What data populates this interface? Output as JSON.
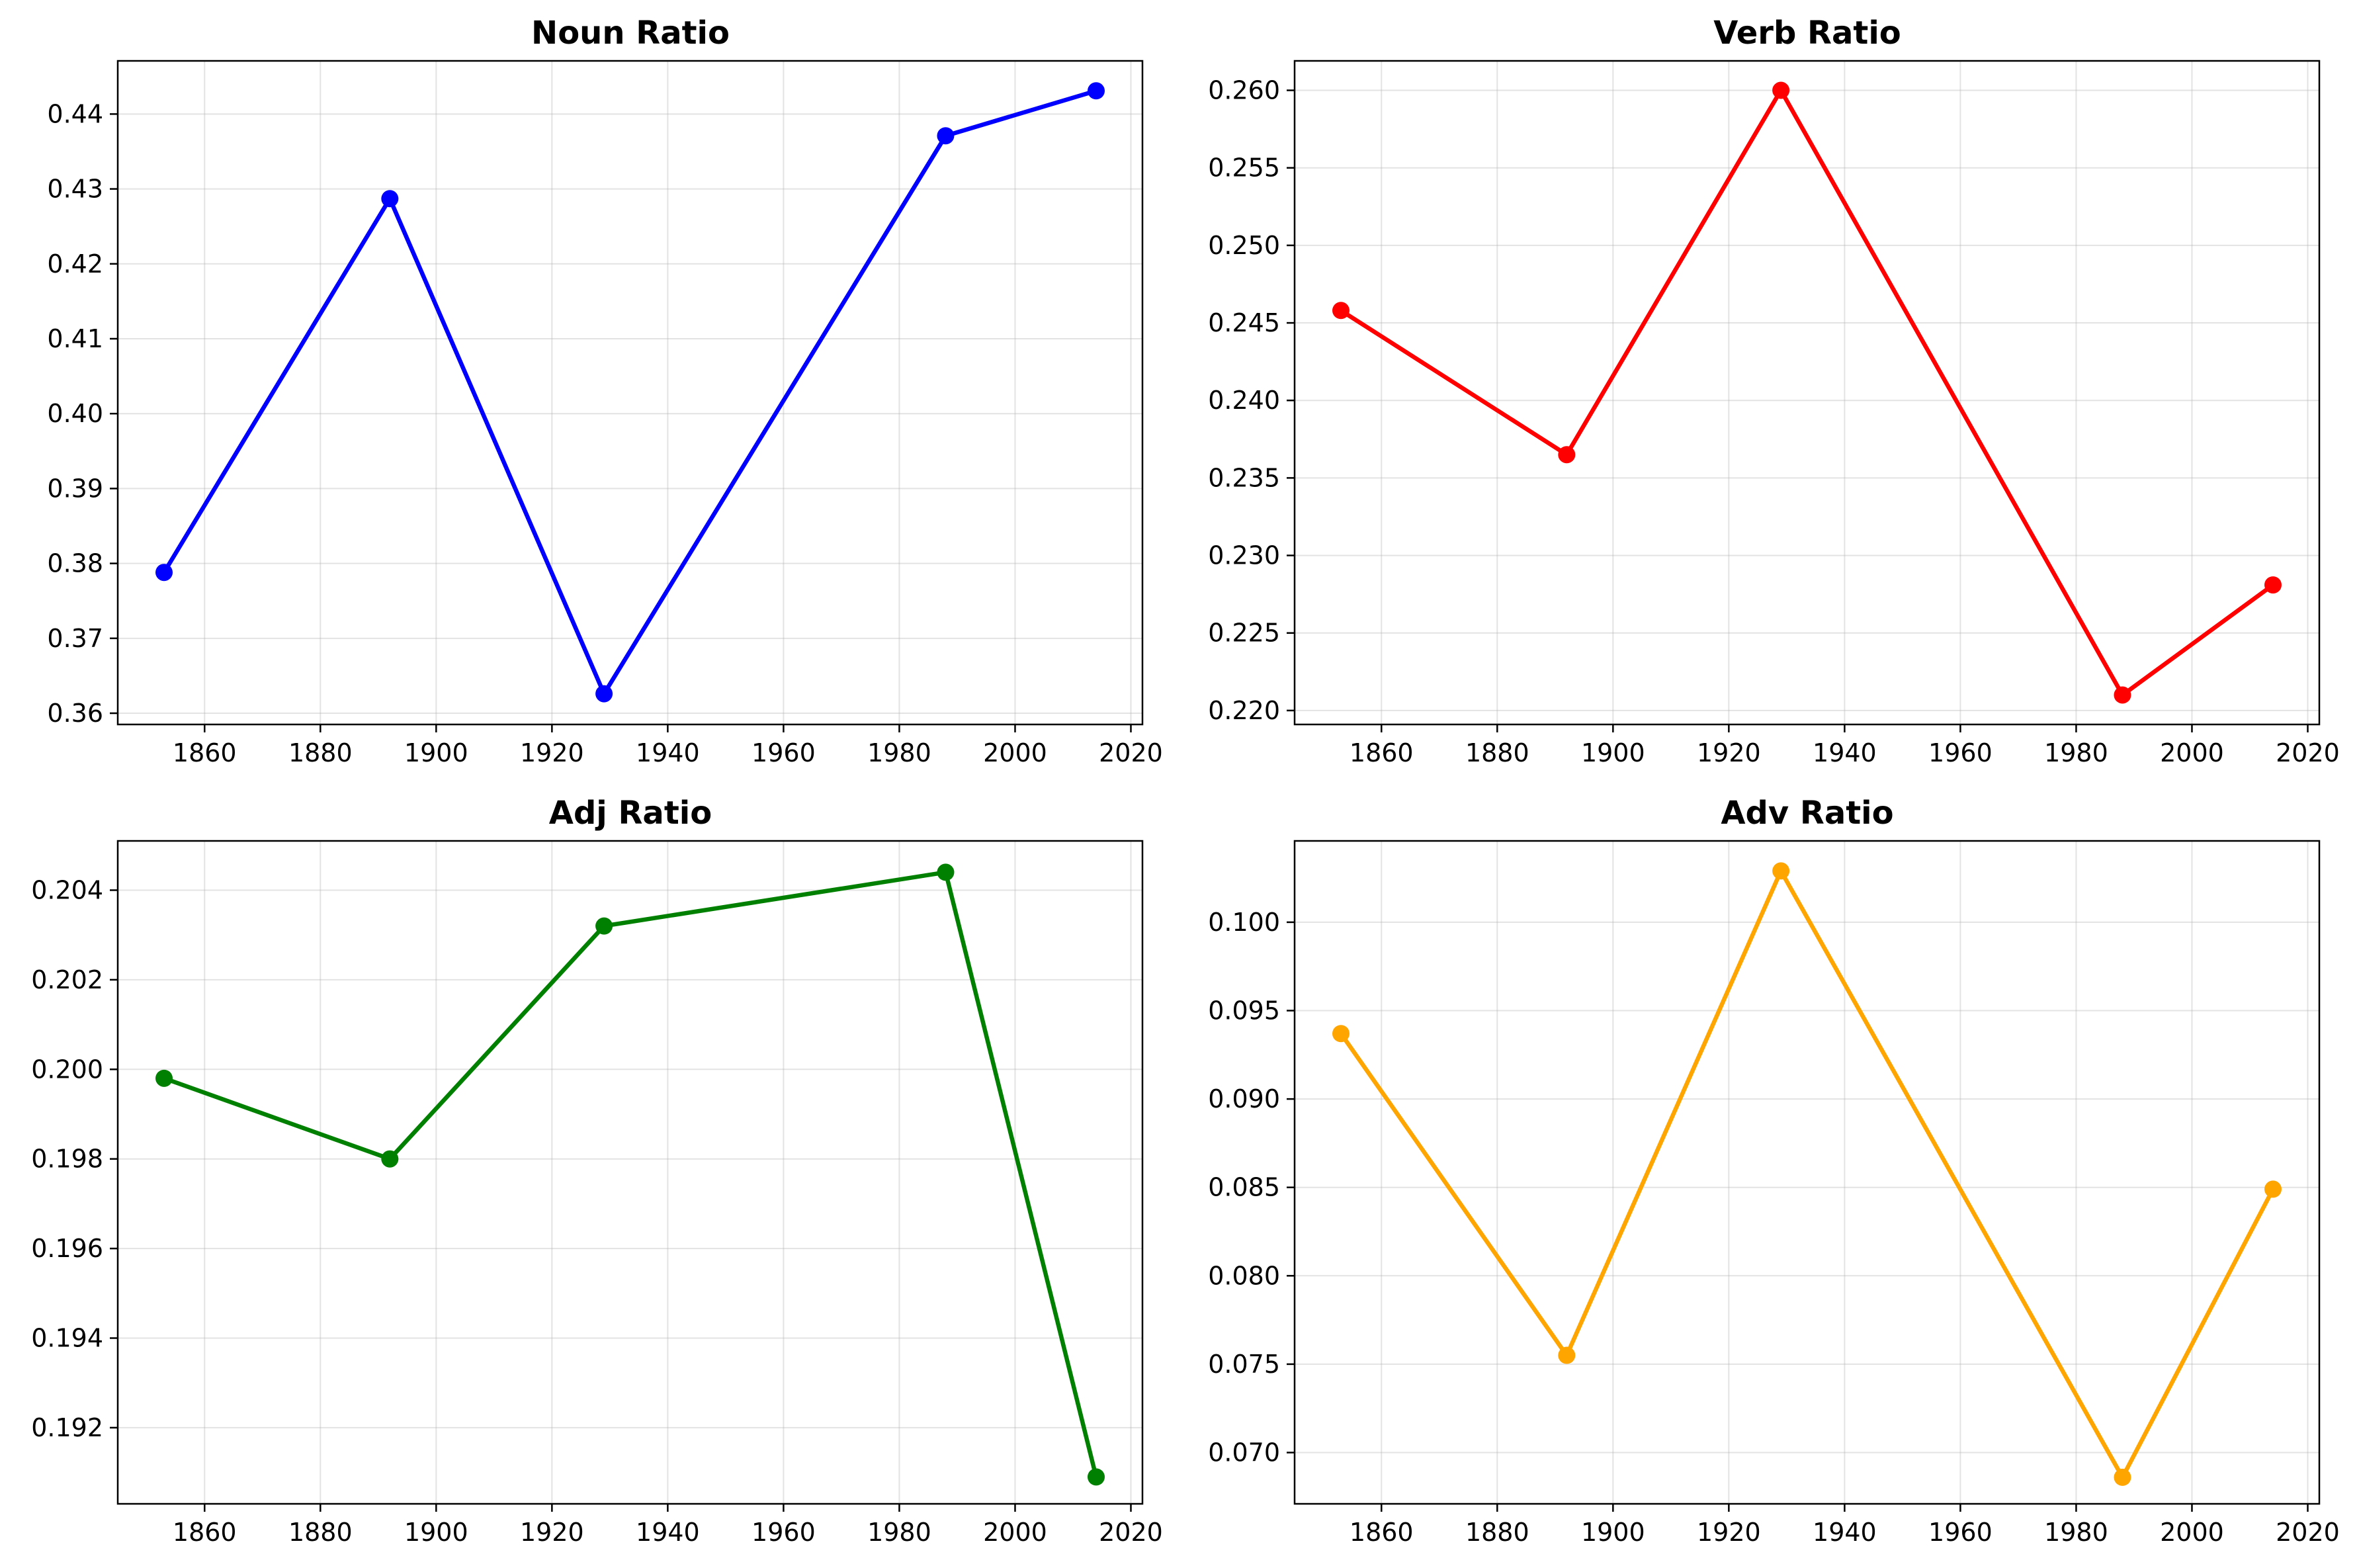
{
  "chart_data": [
    {
      "type": "line",
      "title": "Noun Ratio",
      "xlabel": "",
      "ylabel": "",
      "color": "#0000ff",
      "x": [
        1853,
        1892,
        1929,
        1988,
        2014
      ],
      "values": [
        0.3788,
        0.4287,
        0.3626,
        0.4371,
        0.4431
      ],
      "xlim": [
        1845,
        2022
      ],
      "ylim": [
        0.3585,
        0.4471
      ],
      "xticks": [
        1860,
        1880,
        1900,
        1920,
        1940,
        1960,
        1980,
        2000,
        2020
      ],
      "xtick_labels": [
        "1860",
        "1880",
        "1900",
        "1920",
        "1940",
        "1960",
        "1980",
        "2000",
        "2020"
      ],
      "yticks": [
        0.36,
        0.37,
        0.38,
        0.39,
        0.4,
        0.41,
        0.42,
        0.43,
        0.44
      ],
      "ytick_labels": [
        "0.36",
        "0.37",
        "0.38",
        "0.39",
        "0.40",
        "0.41",
        "0.42",
        "0.43",
        "0.44"
      ],
      "grid": true
    },
    {
      "type": "line",
      "title": "Verb Ratio",
      "xlabel": "",
      "ylabel": "",
      "color": "#ff0000",
      "x": [
        1853,
        1892,
        1929,
        1988,
        2014
      ],
      "values": [
        0.2458,
        0.2365,
        0.26,
        0.221,
        0.2281
      ],
      "xlim": [
        1845,
        2022
      ],
      "ylim": [
        0.2191,
        0.2619
      ],
      "xticks": [
        1860,
        1880,
        1900,
        1920,
        1940,
        1960,
        1980,
        2000,
        2020
      ],
      "xtick_labels": [
        "1860",
        "1880",
        "1900",
        "1920",
        "1940",
        "1960",
        "1980",
        "2000",
        "2020"
      ],
      "yticks": [
        0.22,
        0.225,
        0.23,
        0.235,
        0.24,
        0.245,
        0.25,
        0.255,
        0.26
      ],
      "ytick_labels": [
        "0.220",
        "0.225",
        "0.230",
        "0.235",
        "0.240",
        "0.245",
        "0.250",
        "0.255",
        "0.260"
      ],
      "grid": true
    },
    {
      "type": "line",
      "title": "Adj Ratio",
      "xlabel": "",
      "ylabel": "",
      "color": "#008000",
      "x": [
        1853,
        1892,
        1929,
        1988,
        2014
      ],
      "values": [
        0.1998,
        0.198,
        0.2032,
        0.2044,
        0.1909
      ],
      "xlim": [
        1845,
        2022
      ],
      "ylim": [
        0.1903,
        0.2051
      ],
      "xticks": [
        1860,
        1880,
        1900,
        1920,
        1940,
        1960,
        1980,
        2000,
        2020
      ],
      "xtick_labels": [
        "1860",
        "1880",
        "1900",
        "1920",
        "1940",
        "1960",
        "1980",
        "2000",
        "2020"
      ],
      "yticks": [
        0.192,
        0.194,
        0.196,
        0.198,
        0.2,
        0.202,
        0.204
      ],
      "ytick_labels": [
        "0.192",
        "0.194",
        "0.196",
        "0.198",
        "0.200",
        "0.202",
        "0.204"
      ],
      "grid": true
    },
    {
      "type": "line",
      "title": "Adv Ratio",
      "xlabel": "",
      "ylabel": "",
      "color": "#ffa500",
      "x": [
        1853,
        1892,
        1929,
        1988,
        2014
      ],
      "values": [
        0.0937,
        0.0755,
        0.1029,
        0.0686,
        0.0849
      ],
      "xlim": [
        1845,
        2022
      ],
      "ylim": [
        0.0671,
        0.1046
      ],
      "xticks": [
        1860,
        1880,
        1900,
        1920,
        1940,
        1960,
        1980,
        2000,
        2020
      ],
      "xtick_labels": [
        "1860",
        "1880",
        "1900",
        "1920",
        "1940",
        "1960",
        "1980",
        "2000",
        "2020"
      ],
      "yticks": [
        0.07,
        0.075,
        0.08,
        0.085,
        0.09,
        0.095,
        0.1
      ],
      "ytick_labels": [
        "0.070",
        "0.075",
        "0.080",
        "0.085",
        "0.090",
        "0.095",
        "0.100"
      ],
      "grid": true
    }
  ]
}
